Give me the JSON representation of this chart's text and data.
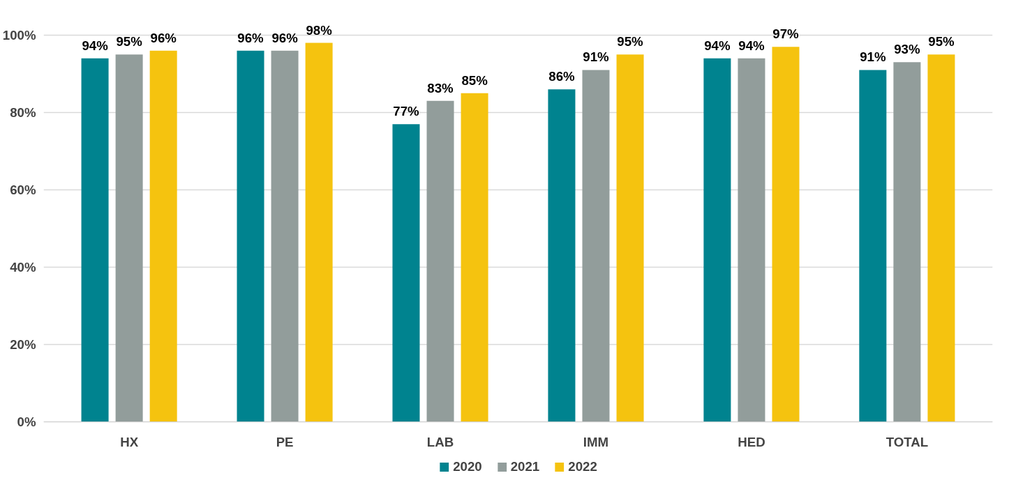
{
  "chart_data": {
    "type": "bar",
    "categories": [
      "HX",
      "PE",
      "LAB",
      "IMM",
      "HED",
      "TOTAL"
    ],
    "series": [
      {
        "name": "2020",
        "color": "#00838f",
        "values": [
          94,
          96,
          77,
          86,
          94,
          91
        ],
        "value_labels": [
          "94%",
          "96%",
          "77%",
          "86%",
          "94%",
          "91%"
        ]
      },
      {
        "name": "2021",
        "color": "#929d9b",
        "values": [
          95,
          96,
          83,
          91,
          94,
          93
        ],
        "value_labels": [
          "95%",
          "96%",
          "83%",
          "91%",
          "94%",
          "93%"
        ]
      },
      {
        "name": "2022",
        "color": "#f5c30f",
        "values": [
          96,
          98,
          85,
          95,
          97,
          95
        ],
        "value_labels": [
          "96%",
          "98%",
          "85%",
          "95%",
          "97%",
          "95%"
        ]
      }
    ],
    "ylim": [
      0,
      100
    ],
    "yticks": [
      {
        "value": 0,
        "label": "0%"
      },
      {
        "value": 20,
        "label": "20%"
      },
      {
        "value": 40,
        "label": "40%"
      },
      {
        "value": 60,
        "label": "60%"
      },
      {
        "value": 80,
        "label": "80%"
      },
      {
        "value": 100,
        "label": "100%"
      }
    ],
    "grid": "y",
    "legend": "bottom"
  }
}
